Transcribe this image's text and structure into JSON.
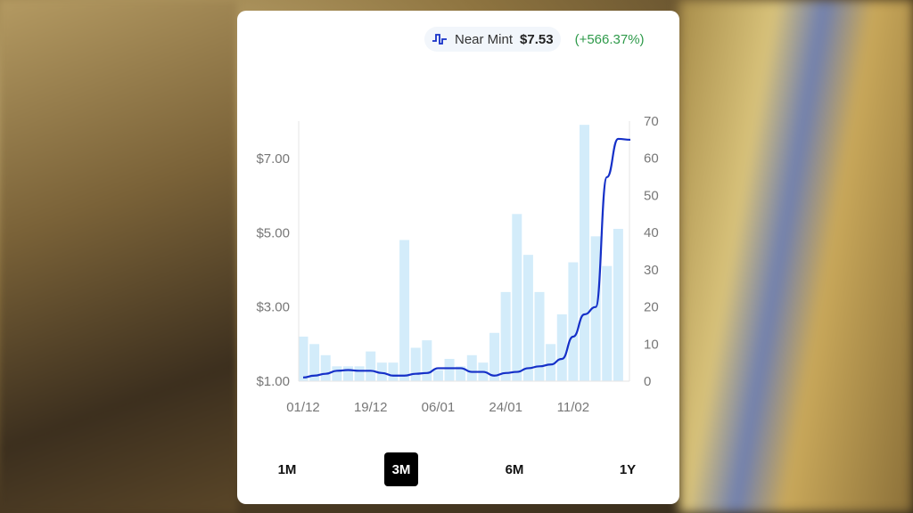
{
  "legend": {
    "icon": "step-line-icon",
    "label": "Near Mint",
    "price": "$7.53",
    "change": "(+566.37%)"
  },
  "colors": {
    "line": "#1530c8",
    "bars": "#d3ecfa",
    "change": "#2e9a4a"
  },
  "tabs": [
    {
      "label": "1M"
    },
    {
      "label": "3M",
      "active": true
    },
    {
      "label": "6M"
    },
    {
      "label": "1Y"
    }
  ],
  "chart_data": {
    "type": "bar+line",
    "left_axis": {
      "ticks": [
        "$1.00",
        "$3.00",
        "$5.00",
        "$7.00"
      ],
      "range": [
        1,
        8
      ]
    },
    "right_axis": {
      "ticks": [
        "0",
        "10",
        "20",
        "30",
        "40",
        "50",
        "60",
        "70"
      ],
      "range": [
        0,
        70
      ]
    },
    "x_ticks": [
      {
        "label": "01/12",
        "index": 0
      },
      {
        "label": "19/12",
        "index": 6
      },
      {
        "label": "06/01",
        "index": 12
      },
      {
        "label": "24/01",
        "index": 18
      },
      {
        "label": "11/02",
        "index": 24
      }
    ],
    "bars": [
      12,
      10,
      7,
      4,
      4,
      4,
      8,
      5,
      5,
      38,
      9,
      11,
      3,
      6,
      4,
      7,
      5,
      13,
      24,
      45,
      34,
      24,
      10,
      18,
      32,
      69,
      39,
      31,
      41
    ],
    "price": [
      1.1,
      1.15,
      1.2,
      1.28,
      1.3,
      1.28,
      1.28,
      1.22,
      1.15,
      1.15,
      1.2,
      1.22,
      1.35,
      1.35,
      1.35,
      1.25,
      1.25,
      1.15,
      1.22,
      1.25,
      1.35,
      1.4,
      1.45,
      1.6,
      2.2,
      2.8,
      3.0,
      6.5,
      7.53
    ],
    "grid": false
  }
}
